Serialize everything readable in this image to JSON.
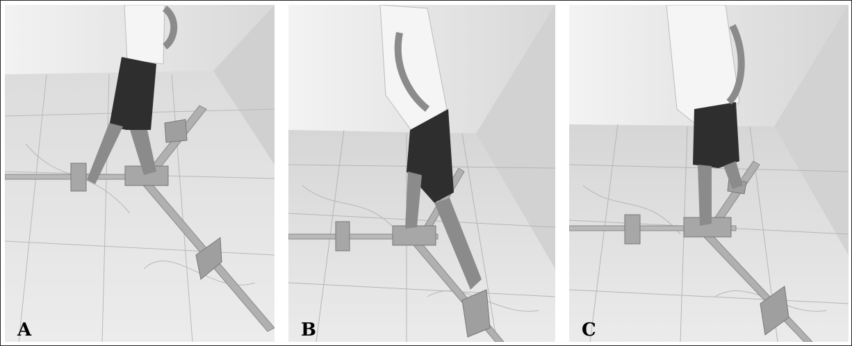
{
  "panels": [
    {
      "id": "A",
      "label": "A"
    },
    {
      "id": "B",
      "label": "B"
    },
    {
      "id": "C",
      "label": "C"
    }
  ]
}
